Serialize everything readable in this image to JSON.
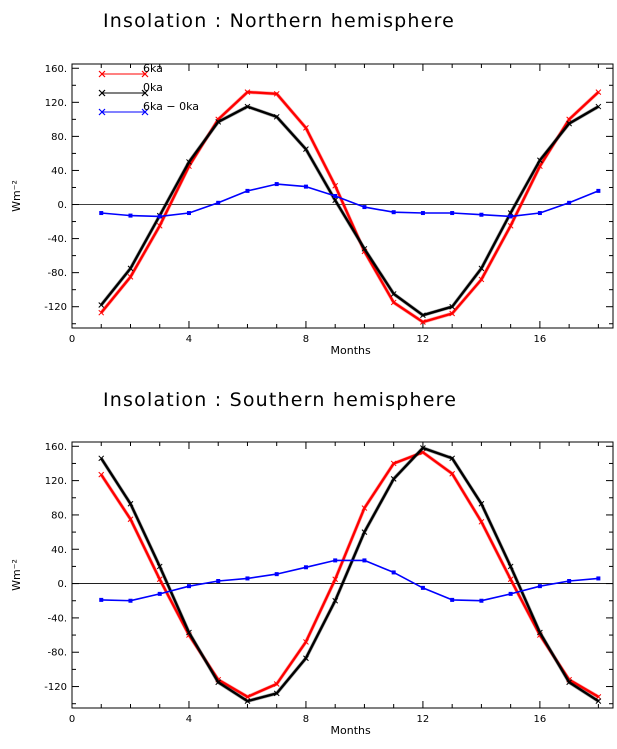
{
  "chart_data": [
    {
      "type": "line",
      "title": "Insolation : Northern hemisphere",
      "xlabel": "Months",
      "ylabel": "Wm⁻²",
      "xlim": [
        0,
        18.5
      ],
      "ylim": [
        -145,
        165
      ],
      "xticks": [
        0,
        4,
        8,
        12,
        16
      ],
      "xtick_labels": [
        "0",
        "4",
        "8",
        "12",
        "16"
      ],
      "yticks": [
        -120,
        -80,
        -40,
        0,
        40,
        80,
        120,
        160
      ],
      "ytick_labels": [
        "-120",
        "-80.",
        "-40.",
        "0.",
        "40.",
        "80.",
        "120.",
        "160."
      ],
      "legend": "top-left",
      "zero_line": true,
      "x": [
        1,
        2,
        3,
        4,
        5,
        6,
        7,
        8,
        9,
        10,
        11,
        12,
        13,
        14,
        15,
        16,
        17,
        18
      ],
      "series": [
        {
          "name": "6ka",
          "color": "#ff0000",
          "marker": "x",
          "values": [
            -127,
            -85,
            -25,
            45,
            100,
            132,
            130,
            90,
            22,
            -55,
            -115,
            -138,
            -128,
            -88,
            -25,
            45,
            100,
            132
          ]
        },
        {
          "name": "0ka",
          "color": "#000000",
          "marker": "x",
          "values": [
            -118,
            -75,
            -13,
            50,
            97,
            115,
            103,
            65,
            5,
            -52,
            -105,
            -130,
            -120,
            -75,
            -10,
            52,
            95,
            115
          ]
        },
        {
          "name": "6ka  −  0ka",
          "color": "#0000ff",
          "marker": "x",
          "values": [
            -10,
            -13,
            -14,
            -10,
            2,
            16,
            24,
            21,
            10,
            -3,
            -9,
            -10,
            -10,
            -12,
            -14,
            -10,
            2,
            16
          ]
        }
      ]
    },
    {
      "type": "line",
      "title": "Insolation : Southern hemisphere",
      "xlabel": "Months",
      "ylabel": "Wm⁻²",
      "xlim": [
        0,
        18.5
      ],
      "ylim": [
        -145,
        165
      ],
      "xticks": [
        0,
        4,
        8,
        12,
        16
      ],
      "xtick_labels": [
        "0",
        "4",
        "8",
        "12",
        "16"
      ],
      "yticks": [
        -120,
        -80,
        -40,
        0,
        40,
        80,
        120,
        160
      ],
      "ytick_labels": [
        "-120",
        "-80.",
        "-40.",
        "0.",
        "40.",
        "80.",
        "120.",
        "160."
      ],
      "zero_line": true,
      "x": [
        1,
        2,
        3,
        4,
        5,
        6,
        7,
        8,
        9,
        10,
        11,
        12,
        13,
        14,
        15,
        16,
        17,
        18
      ],
      "series": [
        {
          "color": "#ff0000",
          "marker": "x",
          "values": [
            127,
            75,
            5,
            -60,
            -112,
            -132,
            -117,
            -68,
            5,
            88,
            140,
            153,
            128,
            72,
            5,
            -60,
            -112,
            -132
          ]
        },
        {
          "color": "#000000",
          "marker": "x",
          "values": [
            146,
            93,
            20,
            -57,
            -115,
            -137,
            -128,
            -87,
            -20,
            60,
            122,
            158,
            146,
            93,
            20,
            -57,
            -115,
            -137
          ]
        },
        {
          "color": "#0000ff",
          "marker": "x",
          "values": [
            -19,
            -20,
            -12,
            -3,
            3,
            6,
            11,
            19,
            27,
            27,
            13,
            -5,
            -19,
            -20,
            -12,
            -3,
            3,
            6
          ]
        }
      ]
    }
  ]
}
